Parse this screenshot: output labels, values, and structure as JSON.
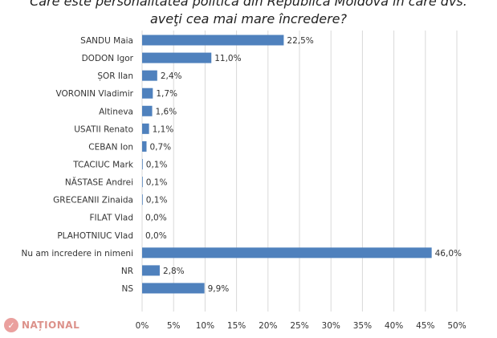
{
  "chart_data": {
    "type": "bar",
    "orientation": "horizontal",
    "title": "Care este personalitatea politică din Republica Moldova în care dvs.\naveţi cea mai mare încredere?",
    "categories": [
      "SANDU Maia",
      "DODON Igor",
      "ȘOR Ilan",
      "VORONIN Vladimir",
      "Altineva",
      "USATII Renato",
      "CEBAN Ion",
      "TCACIUC Mark",
      "NĂSTASE Andrei",
      "GRECEANII Zinaida",
      "FILAT Vlad",
      "PLAHOTNIUC Vlad",
      "Nu am incredere in nimeni",
      "NR",
      "NS"
    ],
    "values": [
      22.5,
      11.0,
      2.4,
      1.7,
      1.6,
      1.1,
      0.7,
      0.1,
      0.1,
      0.1,
      0.0,
      0.0,
      46.0,
      2.8,
      9.9
    ],
    "data_labels": [
      "22,5%",
      "11,0%",
      "2,4%",
      "1,7%",
      "1,6%",
      "1,1%",
      "0,7%",
      "0,1%",
      "0,1%",
      "0,1%",
      "0,0%",
      "0,0%",
      "46,0%",
      "2,8%",
      "9,9%"
    ],
    "x_ticks": [
      0,
      5,
      10,
      15,
      20,
      25,
      30,
      35,
      40,
      45,
      50
    ],
    "x_tick_labels": [
      "0%",
      "5%",
      "10%",
      "15%",
      "20%",
      "25%",
      "30%",
      "35%",
      "40%",
      "45%",
      "50%"
    ],
    "xlim": [
      0,
      50
    ],
    "grid": true,
    "xlabel": "",
    "ylabel": "",
    "bar_color": "#4f81bd"
  },
  "watermark": {
    "text": "NAȚIONAL",
    "color": "#c0392b"
  }
}
